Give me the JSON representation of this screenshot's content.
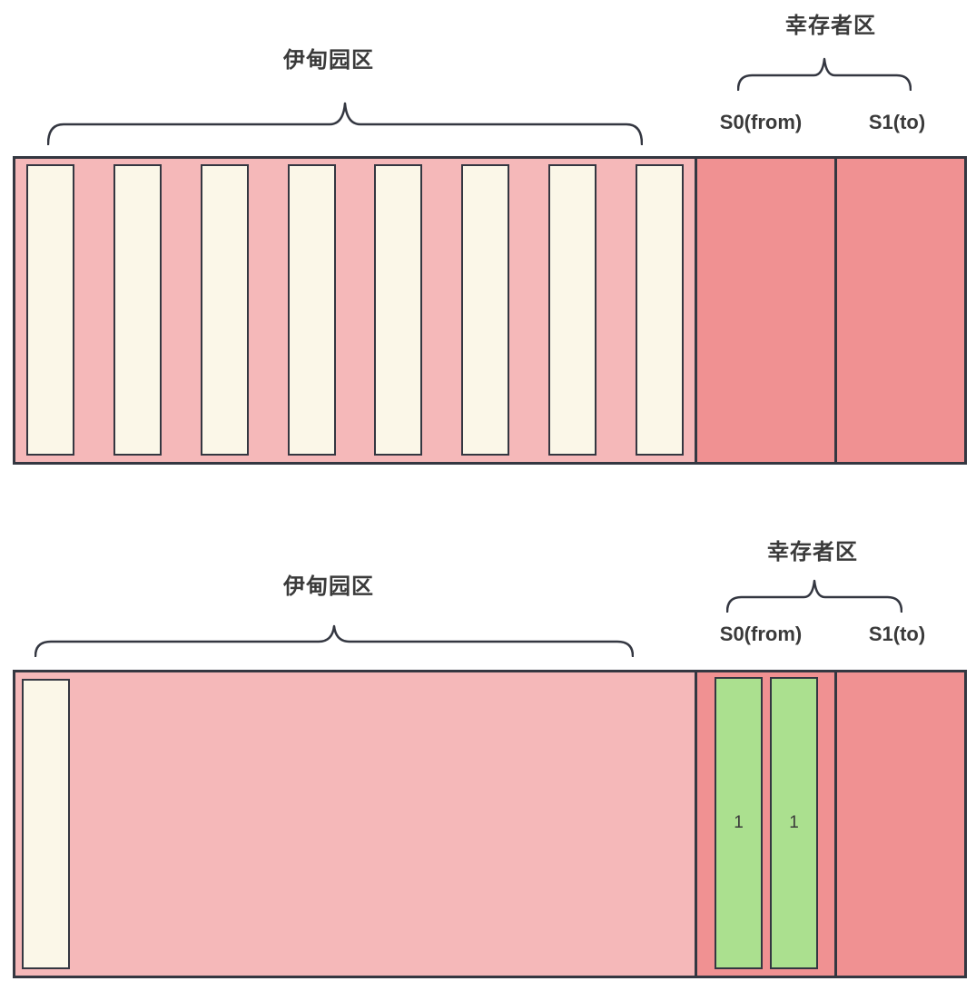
{
  "colors": {
    "eden_bg": "#f5b8b9",
    "survivor_bg": "#f09192",
    "eden_object_fill": "#fbf7e8",
    "survivor_object_fill": "#abe08f",
    "outline": "#343741",
    "text": "#3a3a3a"
  },
  "sections": [
    {
      "id": "young-gen-before-gc",
      "eden_label": "伊甸园区",
      "survivor_label": "幸存者区",
      "s0_label": "S0(from)",
      "s1_label": "S1(to)",
      "eden_object_count": 8,
      "s0_objects": [],
      "s1_objects": []
    },
    {
      "id": "young-gen-after-gc",
      "eden_label": "伊甸园区",
      "survivor_label": "幸存者区",
      "s0_label": "S0(from)",
      "s1_label": "S1(to)",
      "eden_object_count": 1,
      "s0_objects": [
        {
          "age": "1"
        },
        {
          "age": "1"
        }
      ],
      "s1_objects": []
    }
  ]
}
